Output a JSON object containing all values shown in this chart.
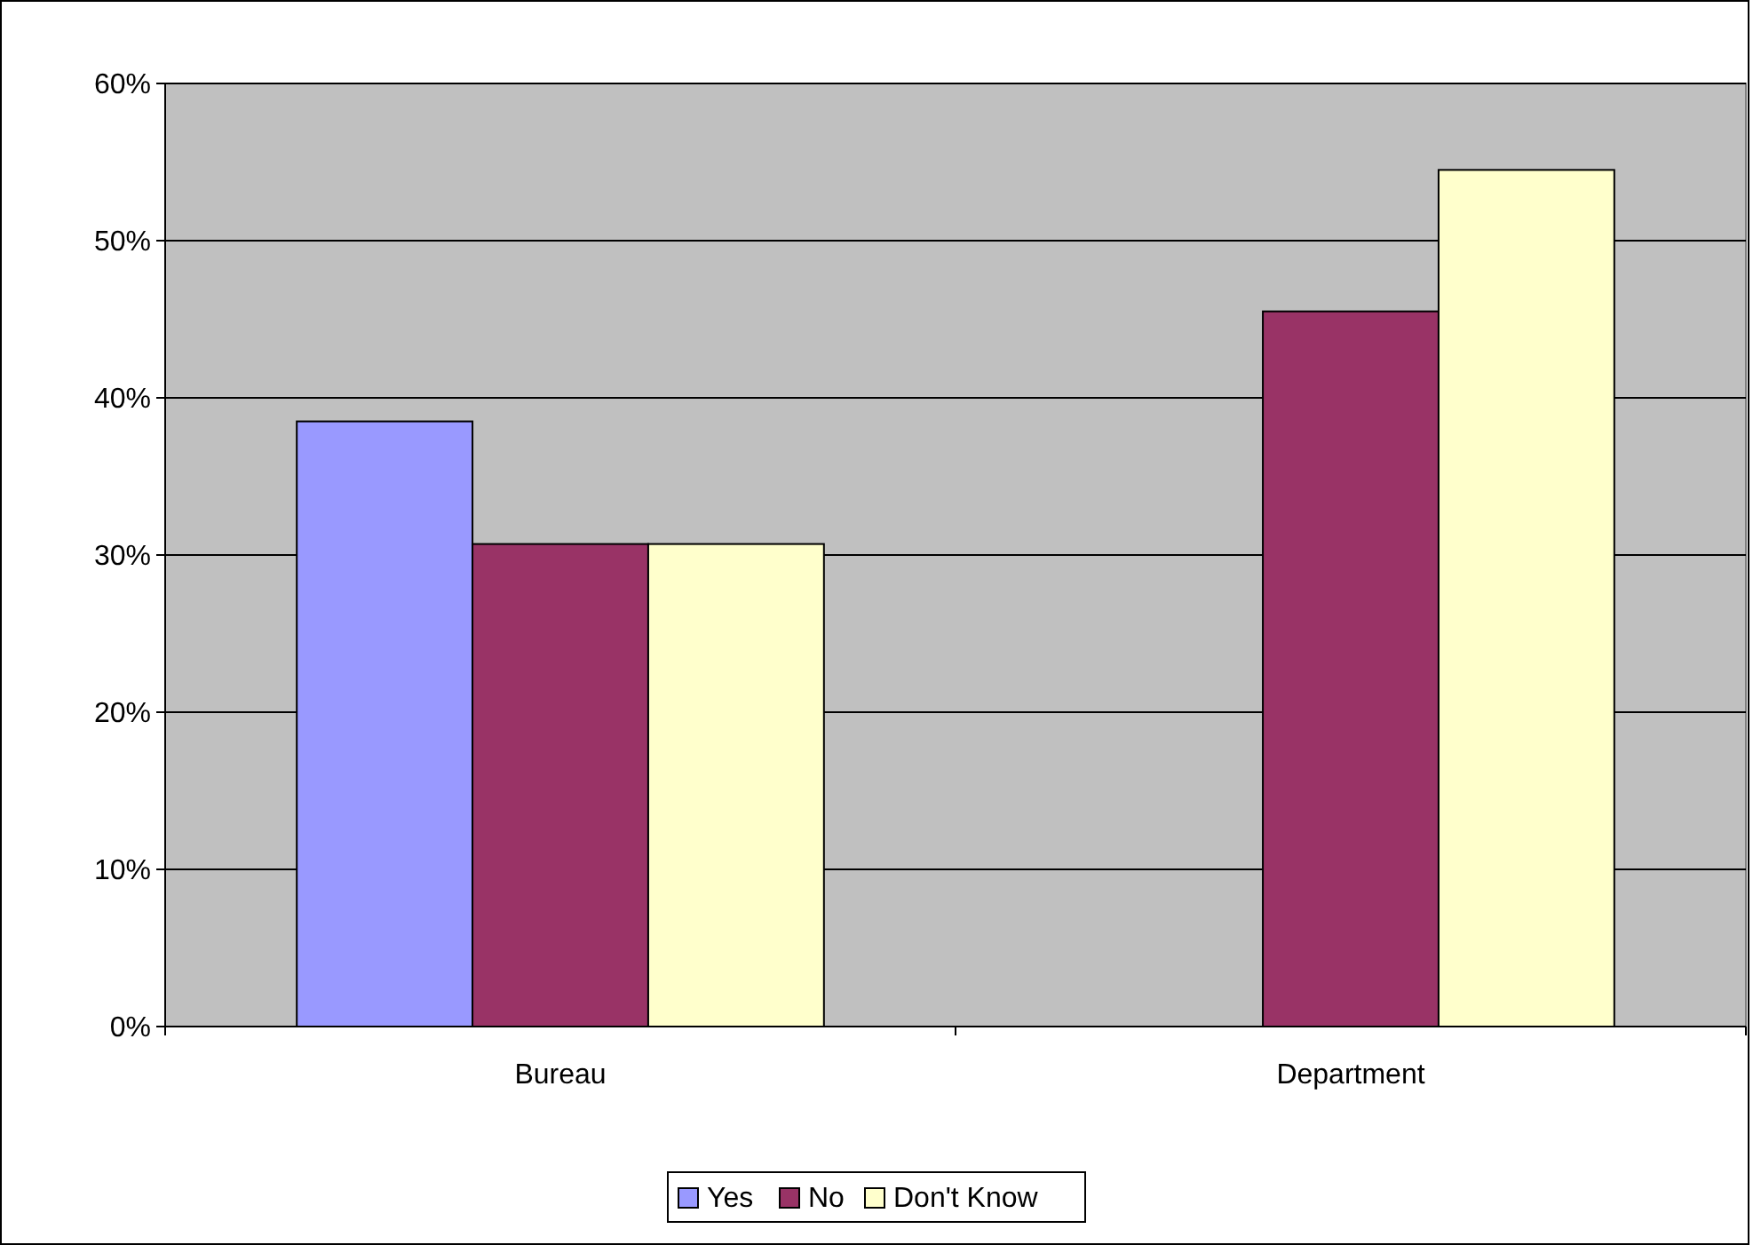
{
  "chart_data": {
    "type": "bar",
    "categories": [
      "Bureau",
      "Department"
    ],
    "series": [
      {
        "name": "Yes",
        "color": "#9999ff",
        "values": [
          38.5,
          0
        ]
      },
      {
        "name": "No",
        "color": "#993366",
        "values": [
          30.7,
          45.5
        ]
      },
      {
        "name": "Don't Know",
        "color": "#ffffcc",
        "values": [
          30.7,
          54.5
        ]
      }
    ],
    "ylim": [
      0,
      60
    ],
    "yticks": [
      {
        "value": 0,
        "label": "0%"
      },
      {
        "value": 10,
        "label": "10%"
      },
      {
        "value": 20,
        "label": "20%"
      },
      {
        "value": 30,
        "label": "30%"
      },
      {
        "value": 40,
        "label": "40%"
      },
      {
        "value": 50,
        "label": "50%"
      },
      {
        "value": 60,
        "label": "60%"
      }
    ],
    "grid": "y",
    "legend": "bottom"
  }
}
